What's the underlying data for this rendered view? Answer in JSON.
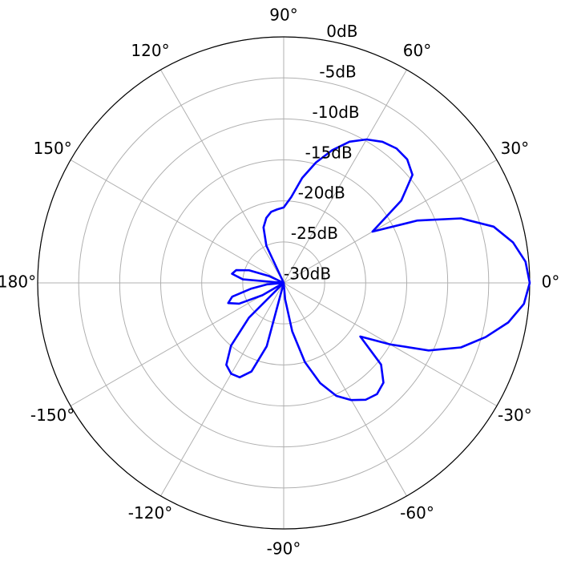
{
  "chart_data": {
    "type": "polar",
    "x": [
      -180,
      -175,
      -170,
      -165,
      -160,
      -155,
      -150,
      -145,
      -140,
      -135,
      -130,
      -125,
      -120,
      -115,
      -110,
      -105,
      -100,
      -95,
      -90,
      -85,
      -80,
      -75,
      -70,
      -65,
      -60,
      -55,
      -50,
      -45,
      -40,
      -35,
      -30,
      -25,
      -20,
      -15,
      -10,
      -5,
      0,
      5,
      10,
      15,
      20,
      25,
      30,
      35,
      40,
      45,
      50,
      55,
      60,
      65,
      70,
      75,
      80,
      85,
      90,
      95,
      100,
      105,
      110,
      115,
      120,
      125,
      130,
      135,
      140,
      145,
      150,
      155,
      160,
      165,
      170,
      175,
      180
    ],
    "values": [
      -30,
      -28,
      -26,
      -23.5,
      -22.8,
      -24,
      -27,
      -30,
      -30,
      -24,
      -20,
      -17.8,
      -17.2,
      -17.3,
      -18.5,
      -22,
      -30,
      -30,
      -30,
      -28,
      -24,
      -20,
      -17,
      -14.8,
      -13.5,
      -12.6,
      -12.3,
      -12.8,
      -14.5,
      -18.6,
      -15,
      -10.5,
      -7,
      -4.5,
      -2.2,
      -0.6,
      0,
      -0.4,
      -1.6,
      -3.5,
      -7,
      -12,
      -17.5,
      -12.5,
      -9.5,
      -8.7,
      -8.6,
      -9,
      -9.8,
      -11,
      -12.8,
      -14.8,
      -17,
      -19.5,
      -20.8,
      -21,
      -21.2,
      -21.8,
      -22.8,
      -25,
      -30,
      -30,
      -30,
      -30,
      -30,
      -30,
      -30,
      -28,
      -25.5,
      -24,
      -23.6,
      -25,
      -30
    ],
    "color": "#0000ff",
    "xticks": [
      {
        "value": 0,
        "label": "0°"
      },
      {
        "value": 30,
        "label": "30°"
      },
      {
        "value": 60,
        "label": "60°"
      },
      {
        "value": 90,
        "label": "90°"
      },
      {
        "value": 120,
        "label": "120°"
      },
      {
        "value": 150,
        "label": "150°"
      },
      {
        "value": 180,
        "label": "180°"
      },
      {
        "value": -150,
        "label": "-150°"
      },
      {
        "value": -120,
        "label": "-120°"
      },
      {
        "value": -90,
        "label": "-90°"
      },
      {
        "value": -60,
        "label": "-60°"
      },
      {
        "value": -30,
        "label": "-30°"
      }
    ],
    "ylim": [
      -30,
      0
    ],
    "yticks": [
      {
        "value": -30,
        "label": "-30dB"
      },
      {
        "value": -25,
        "label": "-25dB"
      },
      {
        "value": -20,
        "label": "-20dB"
      },
      {
        "value": -15,
        "label": "-15dB"
      },
      {
        "value": -10,
        "label": "-10dB"
      },
      {
        "value": -5,
        "label": "-5dB"
      },
      {
        "value": 0,
        "label": "0dB"
      }
    ],
    "grid": true
  }
}
